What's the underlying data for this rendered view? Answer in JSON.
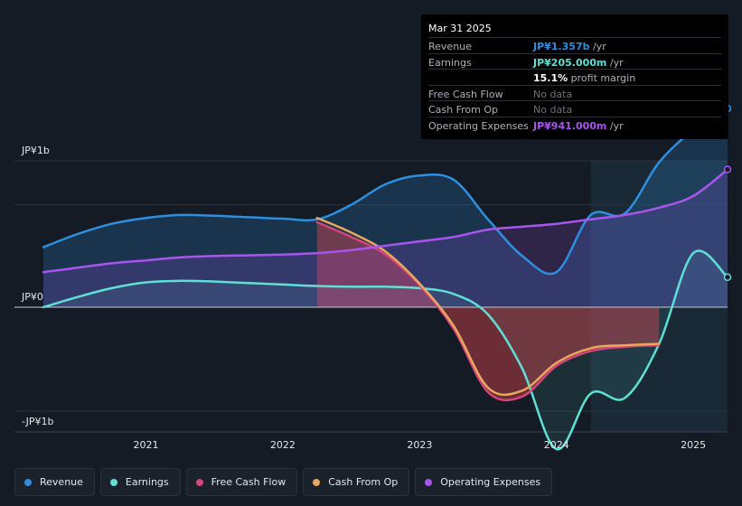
{
  "chart_data": {
    "type": "line",
    "ylabels": {
      "top": "JP¥1b",
      "zero": "JP¥0",
      "bottom": "-JP¥1b"
    },
    "ylim": [
      -1.1,
      1.3
    ],
    "xlim": [
      2020.25,
      2025.25
    ],
    "xticks": [
      "2021",
      "2022",
      "2023",
      "2024",
      "2025"
    ],
    "xtick_values": [
      2021,
      2022,
      2023,
      2024,
      2025
    ],
    "forecast_start": 2024.25,
    "grid": true,
    "series": [
      {
        "name": "Revenue",
        "color": "#2e8fe0",
        "fill": true,
        "x": [
          2020.25,
          2020.5,
          2020.75,
          2021.0,
          2021.25,
          2021.5,
          2021.75,
          2022.0,
          2022.25,
          2022.5,
          2022.75,
          2023.0,
          2023.25,
          2023.5,
          2023.75,
          2024.0,
          2024.25,
          2024.5,
          2024.75,
          2025.0,
          2025.25
        ],
        "values": [
          0.41,
          0.5,
          0.57,
          0.61,
          0.63,
          0.625,
          0.615,
          0.605,
          0.6,
          0.7,
          0.84,
          0.9,
          0.87,
          0.6,
          0.35,
          0.24,
          0.63,
          0.64,
          0.99,
          1.21,
          1.357
        ]
      },
      {
        "name": "Earnings",
        "color": "#5ee0d5",
        "fill": true,
        "x": [
          2020.25,
          2020.5,
          2020.75,
          2021.0,
          2021.25,
          2021.5,
          2021.75,
          2022.0,
          2022.25,
          2022.5,
          2022.75,
          2023.0,
          2023.25,
          2023.5,
          2023.75,
          2024.0,
          2024.25,
          2024.5,
          2024.75,
          2025.0,
          2025.25
        ],
        "values": [
          0.0,
          0.07,
          0.13,
          0.17,
          0.18,
          0.175,
          0.165,
          0.155,
          0.145,
          0.14,
          0.14,
          0.13,
          0.09,
          -0.05,
          -0.42,
          -0.97,
          -0.59,
          -0.62,
          -0.25,
          0.37,
          0.205
        ]
      },
      {
        "name": "Free Cash Flow",
        "color": "#d6457a",
        "fill": true,
        "x": [
          2022.25,
          2022.5,
          2022.75,
          2023.0,
          2023.25,
          2023.5,
          2023.75,
          2024.0,
          2024.25,
          2024.5,
          2024.75
        ],
        "values": [
          0.58,
          0.48,
          0.36,
          0.15,
          -0.15,
          -0.58,
          -0.61,
          -0.4,
          -0.3,
          -0.27,
          -0.26
        ]
      },
      {
        "name": "Cash From Op",
        "color": "#e8a95c",
        "fill": false,
        "x": [
          2022.25,
          2022.5,
          2022.75,
          2023.0,
          2023.25,
          2023.5,
          2023.75,
          2024.0,
          2024.25,
          2024.5,
          2024.75
        ],
        "values": [
          0.61,
          0.51,
          0.38,
          0.16,
          -0.13,
          -0.55,
          -0.57,
          -0.38,
          -0.28,
          -0.26,
          -0.25
        ]
      },
      {
        "name": "Operating Expenses",
        "color": "#a855f0",
        "fill": true,
        "x": [
          2020.25,
          2020.5,
          2020.75,
          2021.0,
          2021.25,
          2021.5,
          2021.75,
          2022.0,
          2022.25,
          2022.5,
          2022.75,
          2023.0,
          2023.25,
          2023.5,
          2023.75,
          2024.0,
          2024.25,
          2024.5,
          2024.75,
          2025.0,
          2025.25
        ],
        "values": [
          0.24,
          0.27,
          0.3,
          0.32,
          0.34,
          0.35,
          0.355,
          0.36,
          0.37,
          0.39,
          0.42,
          0.45,
          0.48,
          0.53,
          0.55,
          0.57,
          0.6,
          0.63,
          0.68,
          0.76,
          0.941
        ]
      }
    ]
  },
  "tooltip": {
    "date": "Mar 31 2025",
    "rows": [
      {
        "key": "Revenue",
        "value": "JP¥1.357b",
        "unit": " /yr",
        "color": "#2e8fe0"
      },
      {
        "key": "Earnings",
        "value": "JP¥205.000m",
        "unit": " /yr",
        "color": "#5ee0d5"
      },
      {
        "key": "",
        "value": "15.1%",
        "unit": " profit margin",
        "color": "#ffffff"
      },
      {
        "key": "Free Cash Flow",
        "value": "No data",
        "unit": "",
        "color": ""
      },
      {
        "key": "Cash From Op",
        "value": "No data",
        "unit": "",
        "color": ""
      },
      {
        "key": "Operating Expenses",
        "value": "JP¥941.000m",
        "unit": " /yr",
        "color": "#a855f0"
      }
    ]
  },
  "legend": [
    {
      "label": "Revenue",
      "color": "#2e8fe0"
    },
    {
      "label": "Earnings",
      "color": "#5ee0d5"
    },
    {
      "label": "Free Cash Flow",
      "color": "#d6457a"
    },
    {
      "label": "Cash From Op",
      "color": "#e8a95c"
    },
    {
      "label": "Operating Expenses",
      "color": "#a855f0"
    }
  ]
}
